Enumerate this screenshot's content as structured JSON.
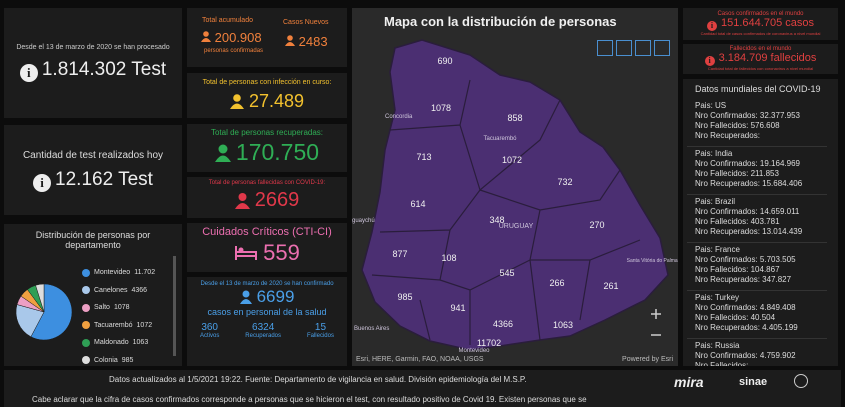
{
  "left": {
    "tests_total": {
      "caption": "Desde el 13 de marzo de 2020 se han procesado",
      "value": "1.814.302 Test"
    },
    "tests_today": {
      "caption": "Cantidad de test realizados hoy",
      "value": "12.162 Test"
    },
    "distribution": {
      "title": "Distribución de personas por departamento",
      "items": [
        {
          "name": "Montevideo",
          "value": "11.702",
          "color": "#3d8fe0"
        },
        {
          "name": "Canelones",
          "value": "4366",
          "color": "#a9c8ea"
        },
        {
          "name": "Salto",
          "value": "1078",
          "color": "#ec9fc4"
        },
        {
          "name": "Tacuarembó",
          "value": "1072",
          "color": "#f0a040"
        },
        {
          "name": "Maldonado",
          "value": "1063",
          "color": "#2f9e55"
        },
        {
          "name": "Colonia",
          "value": "985",
          "color": "#dddddd"
        }
      ]
    }
  },
  "middle": {
    "total": {
      "label": "Total acumulado",
      "value": "200.908",
      "sub": "personas confirmadas"
    },
    "new_cases": {
      "label": "Casos Nuevos",
      "value": "2483"
    },
    "active": {
      "label": "Total de personas con infección en curso:",
      "value": "27.489"
    },
    "recovered": {
      "label": "Total de personas recuperadas:",
      "value": "170.750"
    },
    "deceased": {
      "label": "Total de personas fallecidas con COVID-19:",
      "value": "2669"
    },
    "critical": {
      "label": "Cuidados Críticos (CTI-CI)",
      "value": "559"
    },
    "health": {
      "caption": "Desde el 13 de marzo de 2020 se han confirmado",
      "value": "6699",
      "sub": "casos en personal de la salud",
      "stats": [
        {
          "value": "360",
          "label": "Activos"
        },
        {
          "value": "6324",
          "label": "Recuperados"
        },
        {
          "value": "15",
          "label": "Fallecidos"
        }
      ]
    }
  },
  "map": {
    "title": "Mapa con la distribución de personas",
    "departments": [
      "690",
      "1078",
      "858",
      "713",
      "1072",
      "732",
      "614",
      "348",
      "270",
      "877",
      "108",
      "545",
      "266",
      "261",
      "985",
      "941",
      "4366",
      "1063",
      "11702"
    ],
    "places": [
      "Concordia",
      "Tacuarembó",
      "URUGUAY",
      "guaychú",
      "Santa Vitória do Palmar",
      "Buenos Aires",
      "Montevideo"
    ],
    "attribution": "Esri, HERE, Garmin, FAO, NOAA, USGS",
    "powered": "Powered by Esri"
  },
  "right": {
    "world_cases": {
      "label": "Casos confirmados en el mundo",
      "value": "151.644.705 casos",
      "sub": "Cantidad total de casos confirmados de coronavirus a nivel mundial"
    },
    "world_deaths": {
      "label": "Fallecidos en el mundo",
      "value": "3.184.709 fallecidos",
      "sub": "Cantidad total de fallecidos con coronavirus a nivel mundial"
    },
    "countries_title": "Datos mundiales del COVID-19",
    "field_labels": {
      "country": "Pais:",
      "confirmed": "Nro Confirmados:",
      "deaths": "Nro Fallecidos:",
      "recovered": "Nro Recuperados:"
    },
    "countries": [
      {
        "name": "US",
        "confirmed": "32.377.953",
        "deaths": "576.608",
        "recovered": null
      },
      {
        "name": "India",
        "confirmed": "19.164.969",
        "deaths": "211.853",
        "recovered": "15.684.406"
      },
      {
        "name": "Brazil",
        "confirmed": "14.659.011",
        "deaths": "403.781",
        "recovered": "13.014.439"
      },
      {
        "name": "France",
        "confirmed": "5.703.505",
        "deaths": "104.867",
        "recovered": "347.827"
      },
      {
        "name": "Turkey",
        "confirmed": "4.849.408",
        "deaths": "40.504",
        "recovered": "4.405.199"
      },
      {
        "name": "Russia",
        "confirmed": "4.759.902",
        "deaths": null,
        "recovered": null
      }
    ]
  },
  "footer": {
    "updated": "Datos actualizados al 1/5/2021 19:22. Fuente: Departamento de vigilancia en salud. División epidemiología del M.S.P.",
    "note": "Cabe aclarar que la cifra de casos confirmados corresponde a personas que se hicieron el test, con resultado positivo de Covid 19. Existen personas que se",
    "logos": [
      "mira",
      "sinae"
    ]
  }
}
